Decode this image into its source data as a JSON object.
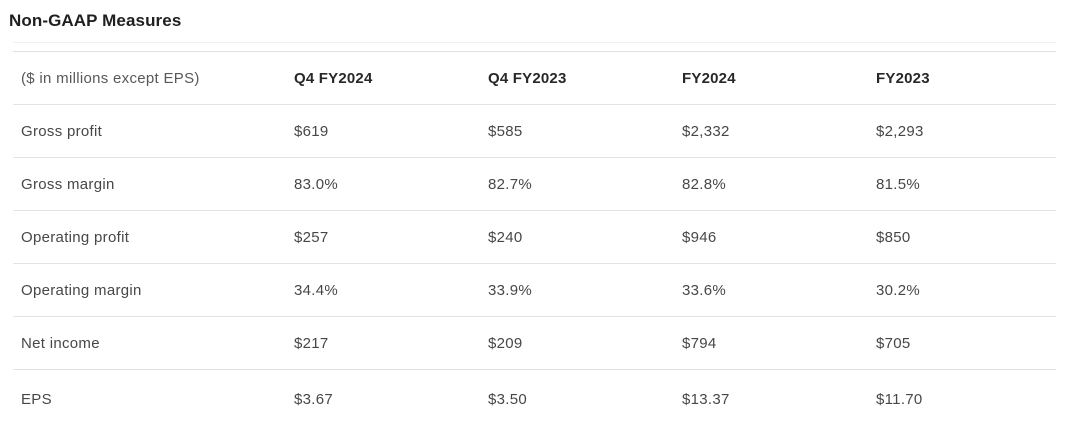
{
  "page": {
    "title": "Non-GAAP Measures"
  },
  "table": {
    "unit_note": "($ in millions except EPS)",
    "columns": [
      "Q4 FY2024",
      "Q4 FY2023",
      "FY2024",
      "FY2023"
    ],
    "rows": [
      {
        "label": "Gross profit",
        "values": [
          "$619",
          "$585",
          "$2,332",
          "$2,293"
        ]
      },
      {
        "label": "Gross margin",
        "values": [
          "83.0%",
          "82.7%",
          "82.8%",
          "81.5%"
        ]
      },
      {
        "label": "Operating profit",
        "values": [
          "$257",
          "$240",
          "$946",
          "$850"
        ]
      },
      {
        "label": "Operating margin",
        "values": [
          "34.4%",
          "33.9%",
          "33.6%",
          "30.2%"
        ]
      },
      {
        "label": "Net income",
        "values": [
          "$217",
          "$209",
          "$794",
          "$705"
        ]
      },
      {
        "label": "EPS",
        "values": [
          "$3.67",
          "$3.50",
          "$13.37",
          "$11.70"
        ]
      }
    ]
  },
  "colors": {
    "background": "#ffffff",
    "title_text": "#1f1f1f",
    "header_text": "#282828",
    "body_text": "#474747",
    "note_text": "#585858",
    "divider": "#e3e3e3",
    "title_rule": "#f1f1f1"
  }
}
